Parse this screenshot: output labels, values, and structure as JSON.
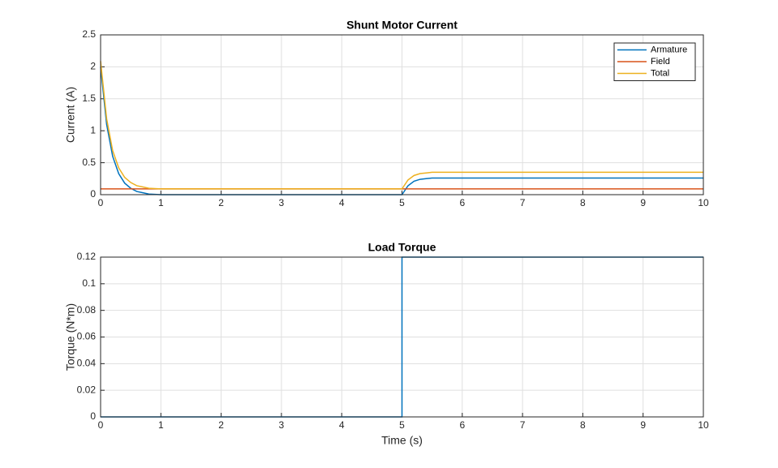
{
  "chart_data": [
    {
      "type": "line",
      "title": "Shunt Motor Current",
      "ylabel": "Current (A)",
      "x": [
        0,
        0.1,
        0.2,
        0.3,
        0.4,
        0.5,
        0.6,
        0.7,
        0.8,
        1,
        2,
        3,
        4,
        5,
        5.1,
        5.2,
        5.3,
        5.4,
        5.5,
        6,
        7,
        8,
        9,
        10
      ],
      "series": [
        {
          "name": "Armature",
          "color": "#0072bd",
          "values": [
            2.0,
            1.1,
            0.6,
            0.33,
            0.18,
            0.1,
            0.05,
            0.03,
            0.01,
            0,
            0,
            0,
            0,
            0,
            0.14,
            0.21,
            0.24,
            0.25,
            0.26,
            0.26,
            0.26,
            0.26,
            0.26,
            0.26
          ]
        },
        {
          "name": "Field",
          "color": "#d95319",
          "values": [
            0.09,
            0.09,
            0.09,
            0.09,
            0.09,
            0.09,
            0.09,
            0.09,
            0.09,
            0.09,
            0.09,
            0.09,
            0.09,
            0.09,
            0.09,
            0.09,
            0.09,
            0.09,
            0.09,
            0.09,
            0.09,
            0.09,
            0.09,
            0.09
          ]
        },
        {
          "name": "Total",
          "color": "#edb120",
          "values": [
            2.09,
            1.19,
            0.69,
            0.42,
            0.27,
            0.19,
            0.14,
            0.12,
            0.1,
            0.09,
            0.09,
            0.09,
            0.09,
            0.09,
            0.23,
            0.3,
            0.33,
            0.34,
            0.35,
            0.35,
            0.35,
            0.35,
            0.35,
            0.35
          ]
        }
      ],
      "xlim": [
        0,
        10
      ],
      "ylim": [
        0,
        2.5
      ],
      "xticks": [
        0,
        1,
        2,
        3,
        4,
        5,
        6,
        7,
        8,
        9,
        10
      ],
      "yticks": [
        0,
        0.5,
        1,
        1.5,
        2,
        2.5
      ],
      "grid": true,
      "legend": "northeast"
    },
    {
      "type": "line",
      "title": "Load Torque",
      "xlabel": "Time (s)",
      "ylabel": "Torque (N*m)",
      "x": [
        0,
        5,
        5,
        10
      ],
      "series": [
        {
          "color": "#0072bd",
          "values": [
            0,
            0,
            0.12,
            0.12
          ]
        }
      ],
      "xlim": [
        0,
        10
      ],
      "ylim": [
        0,
        0.12
      ],
      "xticks": [
        0,
        1,
        2,
        3,
        4,
        5,
        6,
        7,
        8,
        9,
        10
      ],
      "yticks": [
        0,
        0.02,
        0.04,
        0.06,
        0.08,
        0.1,
        0.12
      ],
      "grid": true
    }
  ]
}
